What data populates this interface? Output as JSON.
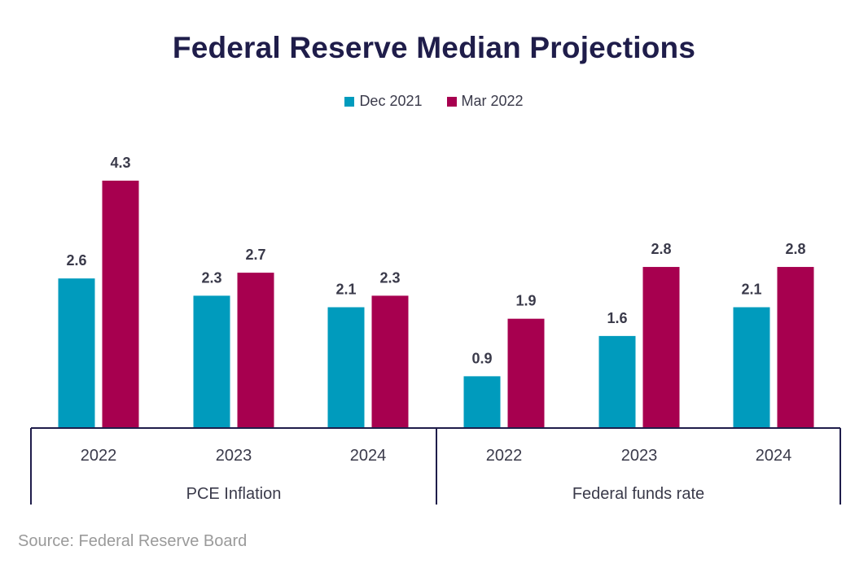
{
  "colors": {
    "dec_2021": "#009bbd",
    "mar_2022": "#a7004f",
    "title": "#1f1d4a",
    "axis": "#1f1d4a",
    "text": "#3a3a4a",
    "source": "#9a9a9a"
  },
  "chart_data": {
    "type": "bar",
    "title": "Federal Reserve Median Projections",
    "legend_position": "top-center",
    "grid": false,
    "ylim": [
      0,
      4.3
    ],
    "groups": [
      {
        "label": "PCE Inflation",
        "categories": [
          "2022",
          "2023",
          "2024"
        ]
      },
      {
        "label": "Federal funds rate",
        "categories": [
          "2022",
          "2023",
          "2024"
        ]
      }
    ],
    "series": [
      {
        "name": "Dec 2021",
        "color": "#009bbd",
        "values": [
          2.6,
          2.3,
          2.1,
          0.9,
          1.6,
          2.1
        ]
      },
      {
        "name": "Mar 2022",
        "color": "#a7004f",
        "values": [
          4.3,
          2.7,
          2.3,
          1.9,
          2.8,
          2.8
        ]
      }
    ]
  },
  "source": "Source: Federal Reserve Board"
}
